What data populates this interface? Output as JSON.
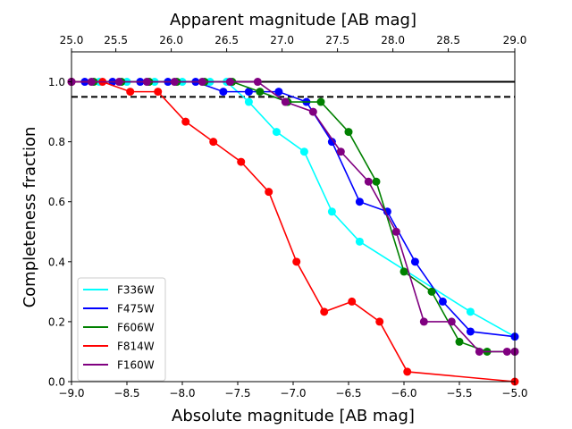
{
  "chart_data": {
    "type": "line",
    "xlabel": "Absolute magnitude [AB mag]",
    "ylabel": "Completeness fraction",
    "top_xlabel": "Apparent magnitude [AB mag]",
    "xlim": [
      -9.0,
      -5.0
    ],
    "ylim": [
      0.0,
      1.1
    ],
    "x_ticks": [
      -9.0,
      -8.5,
      -8.0,
      -7.5,
      -7.0,
      -6.5,
      -6.0,
      -5.5,
      -5.0
    ],
    "x_tick_labels": [
      "−9.0",
      "−8.5",
      "−8.0",
      "−7.5",
      "−7.0",
      "−6.5",
      "−6.0",
      "−5.5",
      "−5.0"
    ],
    "y_ticks": [
      0.0,
      0.2,
      0.4,
      0.6,
      0.8,
      1.0
    ],
    "y_tick_labels": [
      "0.0",
      "0.2",
      "0.4",
      "0.6",
      "0.8",
      "1.0"
    ],
    "top_x_ticks": [
      -9.0,
      -8.6,
      -8.1,
      -7.6,
      -7.1,
      -6.6,
      -6.1,
      -5.6,
      -5.0
    ],
    "top_x_tick_labels": [
      "25.0",
      "25.5",
      "26.0",
      "26.5",
      "27.0",
      "27.5",
      "28.0",
      "28.5",
      "29.0"
    ],
    "hlines": [
      {
        "y": 1.0,
        "style": "solid",
        "color": "#000000"
      },
      {
        "y": 0.95,
        "style": "dashed",
        "color": "#000000"
      }
    ],
    "legend_position": "lower-left",
    "series": [
      {
        "name": "F336W",
        "color": "#00ffff",
        "x": [
          -9.0,
          -8.75,
          -8.5,
          -8.25,
          -8.0,
          -7.75,
          -7.6,
          -7.4,
          -7.15,
          -6.9,
          -6.65,
          -6.4,
          -5.4,
          -5.0
        ],
        "y": [
          1.0,
          1.0,
          1.0,
          1.0,
          1.0,
          1.0,
          1.0,
          0.933,
          0.833,
          0.767,
          0.567,
          0.467,
          0.233,
          0.15
        ]
      },
      {
        "name": "F475W",
        "color": "#0000ff",
        "x": [
          -9.0,
          -8.88,
          -8.63,
          -8.38,
          -8.13,
          -7.88,
          -7.63,
          -7.4,
          -7.13,
          -6.88,
          -6.65,
          -6.4,
          -6.15,
          -5.9,
          -5.65,
          -5.4,
          -5.0
        ],
        "y": [
          1.0,
          1.0,
          1.0,
          1.0,
          1.0,
          1.0,
          0.967,
          0.967,
          0.967,
          0.933,
          0.8,
          0.6,
          0.567,
          0.4,
          0.267,
          0.167,
          0.15
        ]
      },
      {
        "name": "F606W",
        "color": "#008000",
        "x": [
          -9.0,
          -8.8,
          -8.55,
          -8.3,
          -8.05,
          -7.8,
          -7.55,
          -7.3,
          -7.05,
          -6.75,
          -6.5,
          -6.25,
          -6.0,
          -5.75,
          -5.5,
          -5.25,
          -5.0
        ],
        "y": [
          1.0,
          1.0,
          1.0,
          1.0,
          1.0,
          1.0,
          1.0,
          0.967,
          0.933,
          0.933,
          0.833,
          0.667,
          0.367,
          0.3,
          0.133,
          0.1,
          0.1
        ]
      },
      {
        "name": "F814W",
        "color": "#ff0000",
        "x": [
          -9.0,
          -8.72,
          -8.47,
          -8.22,
          -7.97,
          -7.72,
          -7.47,
          -7.22,
          -6.97,
          -6.72,
          -6.47,
          -6.22,
          -5.97,
          -5.0
        ],
        "y": [
          1.0,
          1.0,
          0.967,
          0.967,
          0.867,
          0.8,
          0.733,
          0.633,
          0.4,
          0.233,
          0.267,
          0.2,
          0.033,
          0.0
        ]
      },
      {
        "name": "F160W",
        "color": "#800080",
        "x": [
          -9.0,
          -8.82,
          -8.57,
          -8.32,
          -8.07,
          -7.82,
          -7.57,
          -7.32,
          -7.07,
          -6.82,
          -6.57,
          -6.32,
          -6.07,
          -5.82,
          -5.57,
          -5.32,
          -5.07,
          -5.0
        ],
        "y": [
          1.0,
          1.0,
          1.0,
          1.0,
          1.0,
          1.0,
          1.0,
          1.0,
          0.933,
          0.9,
          0.767,
          0.667,
          0.5,
          0.2,
          0.2,
          0.1,
          0.1,
          0.1
        ]
      }
    ]
  }
}
